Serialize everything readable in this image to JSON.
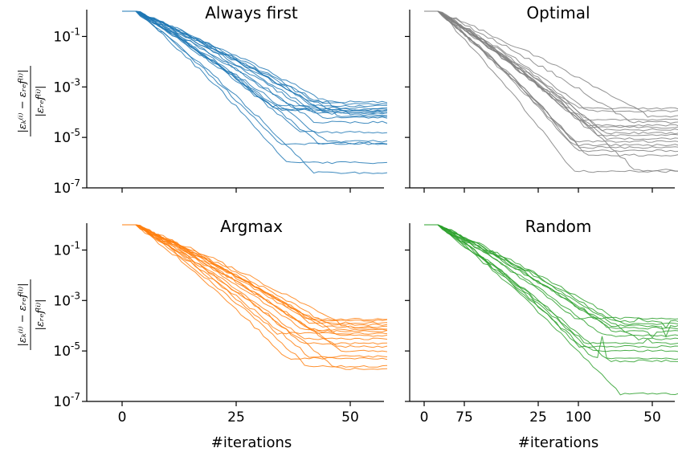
{
  "chart_data": [
    {
      "type": "line",
      "title": "Always first",
      "xlabel": "",
      "ylabel": "|ε_k^(i) − ε_ref^(i)| / |ε_ref^(i)|",
      "y_scale": "log",
      "xlim": [
        -5,
        110
      ],
      "ylim": [
        1e-07,
        1
      ],
      "x_ticks": [
        0,
        25,
        50,
        75,
        100
      ],
      "y_ticks": [
        "10^-1",
        "10^-3",
        "10^-5",
        "10^-7"
      ],
      "color": "#1f77b4",
      "n_series": 25,
      "x_max": 108,
      "approx_final_values": [
        0.00026,
        0.00022,
        0.00018,
        0.00015,
        0.00013,
        0.00012,
        0.00011,
        0.0001,
        9e-05,
        8e-05,
        7e-05,
        6e-05,
        4e-05,
        1.6e-05,
        7e-06,
        6e-06,
        5.5e-06,
        1e-06,
        4e-07
      ]
    },
    {
      "type": "line",
      "title": "Optimal",
      "xlabel": "",
      "y_scale": "log",
      "xlim": [
        -5,
        110
      ],
      "ylim": [
        1e-07,
        1
      ],
      "x_ticks": [
        0,
        25,
        50,
        75,
        100
      ],
      "color": "#808080",
      "n_series": 25,
      "x_max": 108,
      "approx_final_values": [
        0.00014,
        0.00011,
        7e-05,
        5e-05,
        4e-05,
        3e-05,
        2.5e-05,
        2e-05,
        1.5e-05,
        1.2e-05,
        9e-06,
        7e-06,
        5e-06,
        4e-06,
        3e-06,
        2e-06,
        5e-07,
        4.5e-07
      ]
    },
    {
      "type": "line",
      "title": "Argmax",
      "xlabel": "#iterations",
      "ylabel": "|ε_k^(i) − ε_ref^(i)| / |ε_ref^(i)|",
      "y_scale": "log",
      "xlim": [
        -5,
        110
      ],
      "ylim": [
        1e-07,
        1
      ],
      "x_ticks": [
        0,
        25,
        50,
        75,
        100
      ],
      "y_ticks": [
        "10^-1",
        "10^-3",
        "10^-5",
        "10^-7"
      ],
      "color": "#ff7f0e",
      "n_series": 25,
      "x_max": 108,
      "approx_final_values": [
        0.00018,
        0.00016,
        0.00013,
        0.00011,
        9e-05,
        8e-05,
        7e-05,
        6e-05,
        5e-05,
        4e-05,
        3e-05,
        2e-05,
        1.5e-05,
        1e-05,
        6e-06,
        5e-06,
        2.5e-06,
        2e-06
      ]
    },
    {
      "type": "line",
      "title": "Random",
      "xlabel": "#iterations",
      "y_scale": "log",
      "xlim": [
        -5,
        110
      ],
      "ylim": [
        1e-07,
        1
      ],
      "x_ticks": [
        0,
        25,
        50,
        75,
        100
      ],
      "color": "#2ca02c",
      "n_series": 25,
      "x_max": 108,
      "approx_final_values": [
        0.0002,
        0.00015,
        0.00012,
        0.0001,
        8e-05,
        6e-05,
        4e-05,
        3e-05,
        2e-05,
        1.5e-05,
        1e-05,
        5e-06,
        4e-06,
        2e-07
      ]
    }
  ],
  "labels": {
    "xticks": [
      "0",
      "25",
      "50",
      "75",
      "100"
    ],
    "yticks": [
      {
        "base": "10",
        "exp": "-1"
      },
      {
        "base": "10",
        "exp": "-3"
      },
      {
        "base": "10",
        "exp": "-5"
      },
      {
        "base": "10",
        "exp": "-7"
      }
    ],
    "xlabel": "#iterations",
    "ylabel": "|ε_k^(i) − ε_ref^(i)| / |ε_ref^(i)|"
  }
}
